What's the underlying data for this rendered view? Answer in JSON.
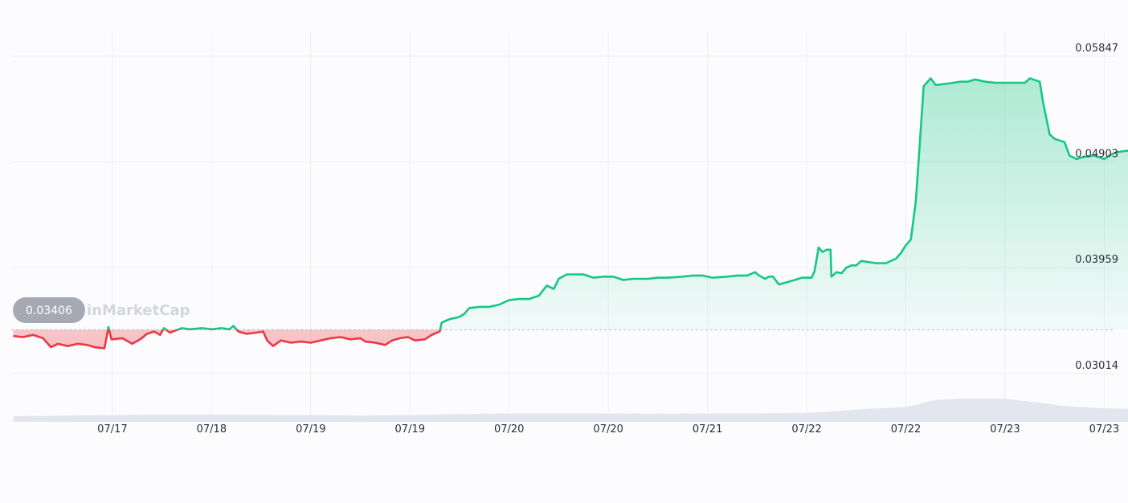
{
  "chart_data": {
    "type": "area",
    "watermark": "inMarketCap",
    "reference_value": "0.03406",
    "y_ticks": [
      "0.05847",
      "0.04903",
      "0.03959",
      "0.03014"
    ],
    "ylim": [
      0.0281,
      0.0613
    ],
    "x_ticks": [
      "07/17",
      "07/18",
      "07/19",
      "07/19",
      "07/20",
      "07/20",
      "07/21",
      "07/22",
      "07/22",
      "07/23",
      "07/23"
    ],
    "x_tick_positions": [
      1,
      2,
      3,
      4,
      5,
      6,
      7,
      8,
      9,
      10,
      11
    ],
    "xlim": [
      -0.02,
      11.11
    ],
    "colors": {
      "up": "#16c784",
      "down": "#ea3943",
      "grid": "#eceef2",
      "volume": "#e4e6ef",
      "ref_badge": "#a6a9b3"
    },
    "series": [
      {
        "values": [
          [
            0.0,
            0.0335
          ],
          [
            0.1,
            0.0334
          ],
          [
            0.2,
            0.0336
          ],
          [
            0.3,
            0.0333
          ],
          [
            0.38,
            0.0325
          ],
          [
            0.45,
            0.0328
          ],
          [
            0.55,
            0.0326
          ],
          [
            0.65,
            0.0328
          ],
          [
            0.75,
            0.0327
          ],
          [
            0.82,
            0.0325
          ],
          [
            0.92,
            0.0324
          ],
          [
            0.96,
            0.0343
          ],
          [
            0.99,
            0.0332
          ],
          [
            1.1,
            0.0333
          ],
          [
            1.2,
            0.0328
          ],
          [
            1.28,
            0.0332
          ],
          [
            1.35,
            0.0337
          ],
          [
            1.42,
            0.0339
          ],
          [
            1.48,
            0.0336
          ],
          [
            1.52,
            0.0342
          ],
          [
            1.58,
            0.0338
          ],
          [
            1.64,
            0.034
          ],
          [
            1.7,
            0.0342
          ],
          [
            1.78,
            0.0341
          ],
          [
            1.9,
            0.0342
          ],
          [
            2.0,
            0.0341
          ],
          [
            2.1,
            0.0342
          ],
          [
            2.18,
            0.0341
          ],
          [
            2.22,
            0.0344
          ],
          [
            2.27,
            0.0339
          ],
          [
            2.35,
            0.0337
          ],
          [
            2.45,
            0.0338
          ],
          [
            2.52,
            0.0339
          ],
          [
            2.56,
            0.0331
          ],
          [
            2.62,
            0.0326
          ],
          [
            2.7,
            0.0331
          ],
          [
            2.8,
            0.0329
          ],
          [
            2.9,
            0.033
          ],
          [
            3.0,
            0.0329
          ],
          [
            3.1,
            0.0331
          ],
          [
            3.2,
            0.0333
          ],
          [
            3.3,
            0.0334
          ],
          [
            3.4,
            0.0332
          ],
          [
            3.5,
            0.0333
          ],
          [
            3.55,
            0.033
          ],
          [
            3.65,
            0.0329
          ],
          [
            3.75,
            0.0327
          ],
          [
            3.82,
            0.0331
          ],
          [
            3.9,
            0.0333
          ],
          [
            3.98,
            0.0334
          ],
          [
            4.05,
            0.0331
          ],
          [
            4.15,
            0.0332
          ],
          [
            4.22,
            0.0336
          ],
          [
            4.3,
            0.0339
          ],
          [
            4.32,
            0.0347
          ],
          [
            4.4,
            0.035
          ],
          [
            4.5,
            0.0352
          ],
          [
            4.55,
            0.0355
          ],
          [
            4.6,
            0.036
          ],
          [
            4.7,
            0.0361
          ],
          [
            4.8,
            0.0361
          ],
          [
            4.9,
            0.0363
          ],
          [
            5.0,
            0.0367
          ],
          [
            5.1,
            0.0368
          ],
          [
            5.2,
            0.0368
          ],
          [
            5.3,
            0.0371
          ],
          [
            5.38,
            0.038
          ],
          [
            5.45,
            0.0377
          ],
          [
            5.5,
            0.0386
          ],
          [
            5.58,
            0.039
          ],
          [
            5.65,
            0.039
          ],
          [
            5.75,
            0.039
          ],
          [
            5.85,
            0.0387
          ],
          [
            5.95,
            0.0388
          ],
          [
            6.05,
            0.0388
          ],
          [
            6.15,
            0.0385
          ],
          [
            6.25,
            0.0386
          ],
          [
            6.4,
            0.0386
          ],
          [
            6.5,
            0.0387
          ],
          [
            6.6,
            0.0387
          ],
          [
            6.75,
            0.0388
          ],
          [
            6.85,
            0.0389
          ],
          [
            6.95,
            0.0389
          ],
          [
            7.05,
            0.0387
          ],
          [
            7.2,
            0.0388
          ],
          [
            7.3,
            0.0389
          ],
          [
            7.4,
            0.0389
          ],
          [
            7.48,
            0.0392
          ],
          [
            7.52,
            0.0389
          ],
          [
            7.58,
            0.0386
          ],
          [
            7.62,
            0.0388
          ],
          [
            7.66,
            0.0388
          ],
          [
            7.72,
            0.0381
          ],
          [
            7.8,
            0.0383
          ],
          [
            7.88,
            0.0385
          ],
          [
            7.95,
            0.0387
          ],
          [
            8.05,
            0.0387
          ],
          [
            8.08,
            0.0393
          ],
          [
            8.12,
            0.0414
          ],
          [
            8.16,
            0.041
          ],
          [
            8.2,
            0.0412
          ],
          [
            8.24,
            0.0412
          ],
          [
            8.25,
            0.0388
          ],
          [
            8.3,
            0.0392
          ],
          [
            8.35,
            0.0391
          ],
          [
            8.4,
            0.0396
          ],
          [
            8.45,
            0.0398
          ],
          [
            8.5,
            0.0398
          ],
          [
            8.55,
            0.0402
          ],
          [
            8.62,
            0.0401
          ],
          [
            8.7,
            0.04
          ],
          [
            8.8,
            0.04
          ],
          [
            8.9,
            0.0404
          ],
          [
            8.95,
            0.0409
          ],
          [
            9.0,
            0.0416
          ],
          [
            9.05,
            0.0421
          ],
          [
            9.1,
            0.0455
          ],
          [
            9.18,
            0.0558
          ],
          [
            9.25,
            0.0565
          ],
          [
            9.3,
            0.0559
          ],
          [
            9.4,
            0.056
          ],
          [
            9.48,
            0.0561
          ],
          [
            9.55,
            0.0562
          ],
          [
            9.62,
            0.0562
          ],
          [
            9.7,
            0.0564
          ],
          [
            9.8,
            0.0562
          ],
          [
            9.9,
            0.0561
          ],
          [
            10.0,
            0.0561
          ],
          [
            10.1,
            0.0561
          ],
          [
            10.2,
            0.0561
          ],
          [
            10.25,
            0.0565
          ],
          [
            10.35,
            0.0562
          ],
          [
            10.38,
            0.0545
          ],
          [
            10.45,
            0.0515
          ],
          [
            10.5,
            0.0511
          ],
          [
            10.6,
            0.0508
          ],
          [
            10.65,
            0.0496
          ],
          [
            10.72,
            0.0493
          ],
          [
            10.8,
            0.0495
          ],
          [
            10.9,
            0.0496
          ],
          [
            11.0,
            0.0493
          ],
          [
            11.05,
            0.0496
          ],
          [
            11.12,
            0.0499
          ],
          [
            11.2,
            0.05
          ],
          [
            11.3,
            0.0501
          ],
          [
            11.38,
            0.0501
          ],
          [
            11.45,
            0.0495
          ],
          [
            11.5,
            0.0493
          ],
          [
            11.55,
            0.0486
          ]
        ]
      }
    ],
    "volume": [
      [
        0.0,
        0.2
      ],
      [
        0.5,
        0.22
      ],
      [
        1.0,
        0.24
      ],
      [
        1.5,
        0.26
      ],
      [
        2.0,
        0.26
      ],
      [
        2.5,
        0.25
      ],
      [
        3.0,
        0.24
      ],
      [
        3.5,
        0.22
      ],
      [
        4.0,
        0.24
      ],
      [
        4.5,
        0.28
      ],
      [
        5.0,
        0.3
      ],
      [
        5.5,
        0.3
      ],
      [
        6.0,
        0.3
      ],
      [
        6.5,
        0.29
      ],
      [
        7.0,
        0.3
      ],
      [
        7.5,
        0.3
      ],
      [
        8.0,
        0.32
      ],
      [
        8.3,
        0.38
      ],
      [
        8.6,
        0.46
      ],
      [
        9.0,
        0.52
      ],
      [
        9.3,
        0.78
      ],
      [
        9.6,
        0.83
      ],
      [
        10.0,
        0.82
      ],
      [
        10.3,
        0.7
      ],
      [
        10.6,
        0.56
      ],
      [
        11.0,
        0.48
      ],
      [
        11.55,
        0.45
      ]
    ],
    "grid": true
  }
}
